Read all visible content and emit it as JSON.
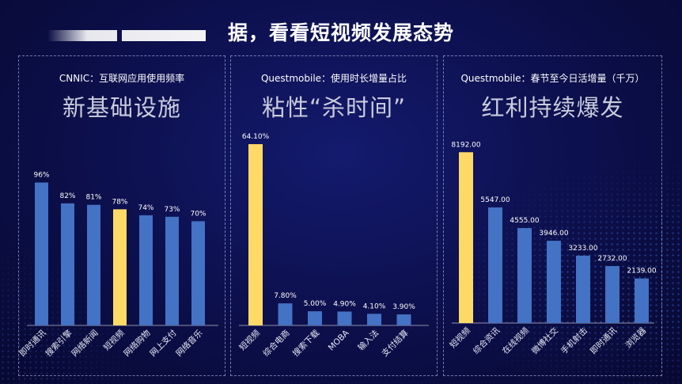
{
  "slide": {
    "title": "据，看看短视频发展态势"
  },
  "colors": {
    "bar": "#4472c4",
    "highlight": "#ffd966",
    "background": "#0c0f4a"
  },
  "chart_data": [
    {
      "type": "bar",
      "subtitle": "CNNIC：互联网应用使用频率",
      "title": "新基础设施",
      "categories": [
        "即时通讯",
        "搜索引擎",
        "网络新闻",
        "短视频",
        "网络购物",
        "网上支付",
        "网络音乐"
      ],
      "values": [
        96,
        82,
        81,
        78,
        74,
        73,
        70
      ],
      "labels": [
        "96%",
        "82%",
        "81%",
        "78%",
        "74%",
        "73%",
        "70%"
      ],
      "highlight_index": 3,
      "ylim": [
        0,
        100
      ]
    },
    {
      "type": "bar",
      "subtitle": "Questmobile：使用时长增量占比",
      "title": "粘性“杀时间”",
      "categories": [
        "短视频",
        "综合电商",
        "搜索下载",
        "MOBA",
        "输入法",
        "支付结算"
      ],
      "values": [
        64.1,
        7.8,
        5.0,
        4.9,
        4.1,
        3.9
      ],
      "labels": [
        "64.10%",
        "7.80%",
        "5.00%",
        "4.90%",
        "4.10%",
        "3.90%"
      ],
      "highlight_index": 0,
      "ylim": [
        0,
        70
      ]
    },
    {
      "type": "bar",
      "subtitle": "Questmobile：春节至今日活增量（千万）",
      "title": "红利持续爆发",
      "categories": [
        "短视频",
        "综合资讯",
        "在线视频",
        "微博社交",
        "手机射击",
        "即时通讯",
        "浏览器"
      ],
      "values": [
        8192.0,
        5547.0,
        4555.0,
        3946.0,
        3233.0,
        2732.0,
        2139.0
      ],
      "labels": [
        "8192.00",
        "5547.00",
        "4555.00",
        "3946.00",
        "3233.00",
        "2732.00",
        "2139.00"
      ],
      "highlight_index": 0,
      "ylim": [
        0,
        9000
      ]
    }
  ]
}
